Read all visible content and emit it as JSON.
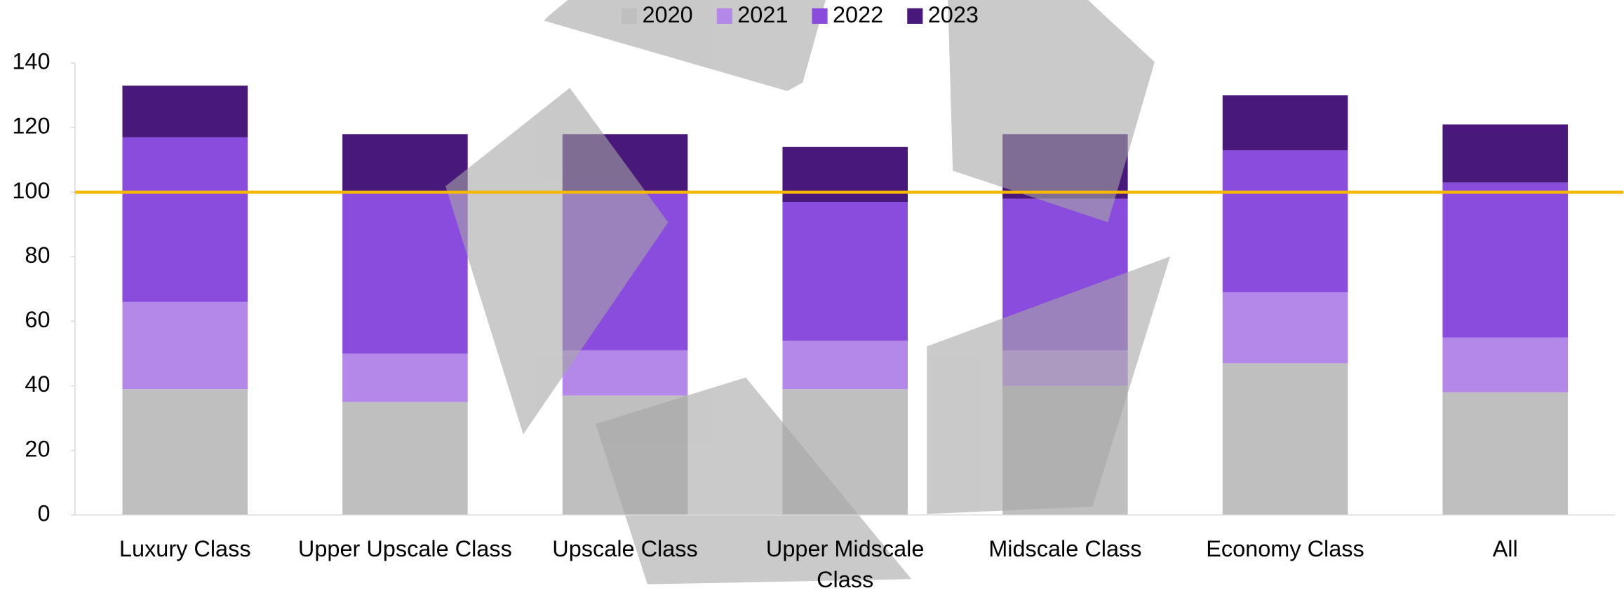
{
  "chart_data": {
    "type": "stacked_bar",
    "categories": [
      "Luxury Class",
      "Upper Upscale Class",
      "Upscale Class",
      "Upper Midscale Class",
      "Midscale Class",
      "Economy Class",
      "All"
    ],
    "series": [
      {
        "name": "2020",
        "color": "#bfbfbf",
        "values": [
          39,
          35,
          37,
          39,
          40,
          47,
          38
        ]
      },
      {
        "name": "2021",
        "color": "#b388e8",
        "values": [
          27,
          15,
          14,
          15,
          11,
          22,
          17
        ]
      },
      {
        "name": "2022",
        "color": "#8a4cdc",
        "values": [
          51,
          50,
          49,
          43,
          47,
          44,
          48
        ]
      },
      {
        "name": "2023",
        "color": "#48187a",
        "values": [
          16,
          18,
          18,
          17,
          20,
          17,
          18
        ]
      }
    ],
    "reference_line": {
      "value": 100,
      "color": "#f5b800"
    },
    "ylim": [
      0,
      140
    ],
    "yticks": [
      0,
      20,
      40,
      60,
      80,
      100,
      120,
      140
    ],
    "legend": "top"
  }
}
